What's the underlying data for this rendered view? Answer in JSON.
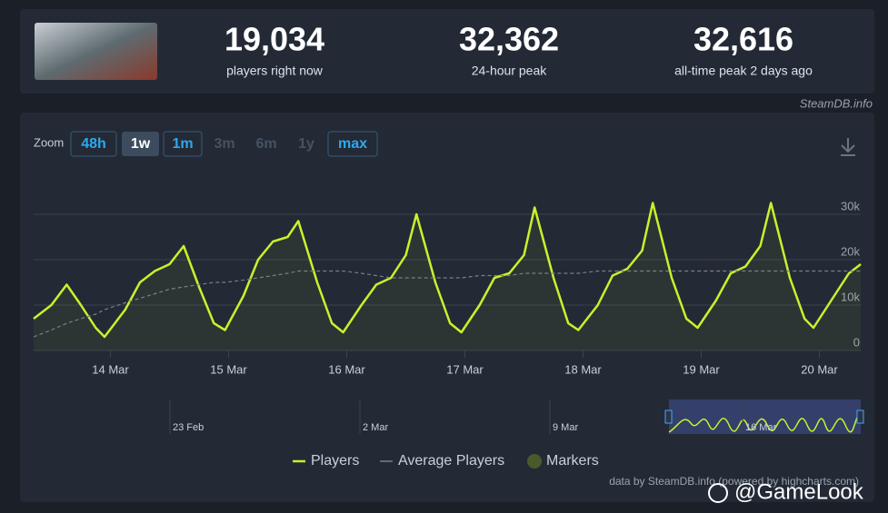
{
  "header": {
    "stats": [
      {
        "value": "19,034",
        "label": "players right now"
      },
      {
        "value": "32,362",
        "label": "24-hour peak"
      },
      {
        "value": "32,616",
        "label": "all-time peak 2 days ago"
      }
    ]
  },
  "source": "SteamDB.info",
  "zoom": {
    "label": "Zoom",
    "buttons": [
      "48h",
      "1w",
      "1m",
      "3m",
      "6m",
      "1y",
      "max"
    ]
  },
  "chart_data": {
    "type": "line",
    "x": [
      13.35,
      13.5,
      13.63,
      13.75,
      13.875,
      13.95,
      14.125,
      14.25,
      14.375,
      14.5,
      14.62,
      14.75,
      14.875,
      14.97,
      15.125,
      15.25,
      15.375,
      15.5,
      15.59,
      15.75,
      15.875,
      15.97,
      16.125,
      16.25,
      16.375,
      16.5,
      16.59,
      16.75,
      16.875,
      16.97,
      17.125,
      17.25,
      17.375,
      17.5,
      17.59,
      17.75,
      17.875,
      17.96,
      18.125,
      18.25,
      18.375,
      18.5,
      18.59,
      18.75,
      18.875,
      18.97,
      19.125,
      19.25,
      19.375,
      19.5,
      19.59,
      19.75,
      19.875,
      19.95,
      20.125,
      20.25,
      20.35
    ],
    "series": [
      {
        "name": "Players",
        "color": "#c6f32c",
        "values": [
          7000,
          10000,
          14500,
          10000,
          5000,
          3000,
          9000,
          15000,
          17500,
          19000,
          23000,
          14000,
          6000,
          4500,
          12000,
          20000,
          24000,
          25000,
          28500,
          15000,
          6000,
          4000,
          10000,
          14500,
          16000,
          21000,
          30000,
          15000,
          6000,
          4000,
          10000,
          16000,
          17000,
          21000,
          31500,
          16000,
          6000,
          4500,
          10000,
          16500,
          18000,
          22000,
          32500,
          16000,
          7000,
          5000,
          11000,
          17000,
          18500,
          23000,
          32500,
          16000,
          7000,
          5000,
          12000,
          17000,
          19000
        ]
      },
      {
        "name": "Average Players",
        "color": "#7a7f88",
        "values": [
          3000,
          4500,
          6000,
          7000,
          8000,
          9000,
          10500,
          11500,
          12500,
          13500,
          14000,
          14500,
          15000,
          15000,
          15500,
          16000,
          16500,
          17000,
          17500,
          17500,
          17500,
          17500,
          17000,
          16500,
          16000,
          16000,
          16000,
          16000,
          16000,
          16000,
          16500,
          16500,
          16500,
          17000,
          17000,
          17000,
          17000,
          17000,
          17500,
          17500,
          17500,
          17500,
          17500,
          17500,
          17500,
          17500,
          17500,
          17500,
          17500,
          17500,
          17500,
          17500,
          17500,
          17500,
          17500,
          17500,
          17500
        ]
      }
    ],
    "markers": {
      "name": "Markers",
      "color": "#4a5a2c"
    },
    "xlim": [
      13.35,
      20.35
    ],
    "xticks": [
      {
        "value": 14,
        "label": "14 Mar"
      },
      {
        "value": 15,
        "label": "15 Mar"
      },
      {
        "value": 16,
        "label": "16 Mar"
      },
      {
        "value": 17,
        "label": "17 Mar"
      },
      {
        "value": 18,
        "label": "18 Mar"
      },
      {
        "value": 19,
        "label": "19 Mar"
      },
      {
        "value": 20,
        "label": "20 Mar"
      }
    ],
    "ylim": [
      0,
      40000
    ],
    "yticks": [
      0,
      {
        "value": 10000,
        "label": "10k"
      },
      {
        "value": 20000,
        "label": "20k"
      },
      {
        "value": 30000,
        "label": "30k"
      }
    ],
    "grid": true
  },
  "navigator": {
    "labels": [
      "23 Feb",
      "2 Mar",
      "9 Mar",
      "16 Mar"
    ]
  },
  "credit": "data by SteamDB.info (powered by highcharts.com)",
  "watermark": "@GameLook"
}
